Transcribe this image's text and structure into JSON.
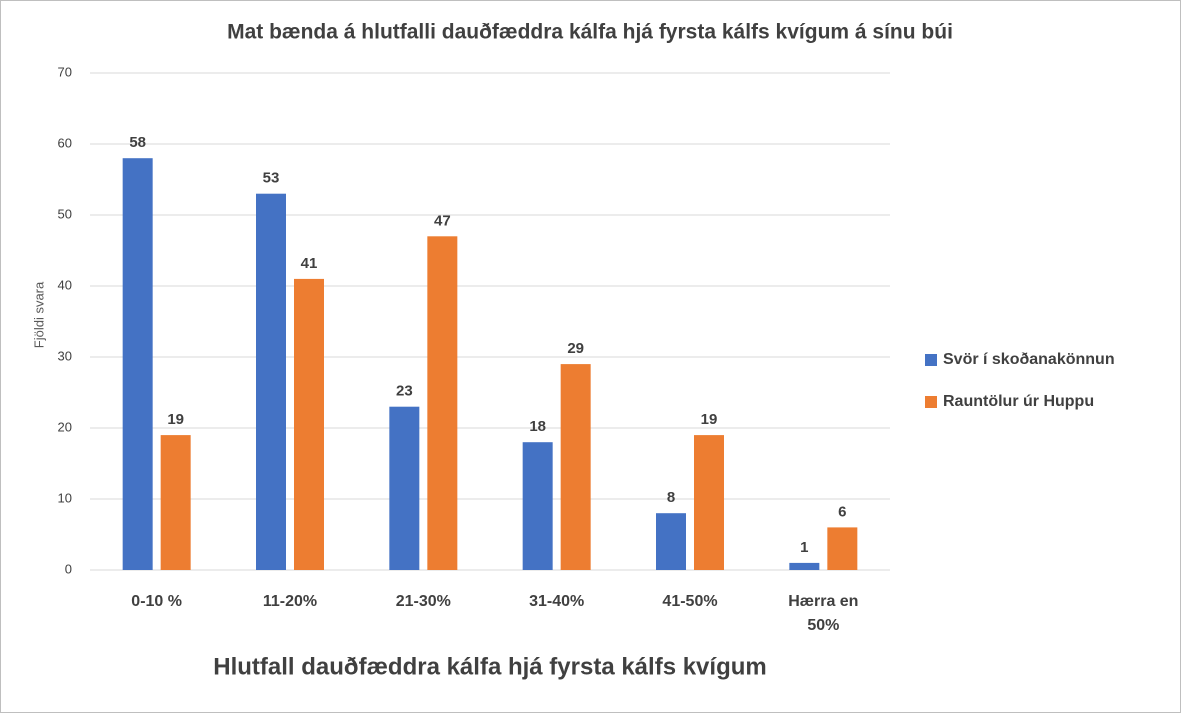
{
  "chart_data": {
    "type": "bar",
    "title": "Mat bænda á hlutfalli dauðfæddra kálfa hjá fyrsta kálfs kvígum á sínu búi",
    "x_label": "Hlutfall dauðfæddra kálfa hjá fyrsta kálfs kvígum",
    "y_label": "Fjöldi svara",
    "categories": [
      "0-10 %",
      "11-20%",
      "21-30%",
      "31-40%",
      "41-50%",
      "Hærra en 50%"
    ],
    "series": [
      {
        "name": "Svör í skoðanakönnun",
        "color": "#4472c4",
        "values": [
          58,
          53,
          23,
          18,
          8,
          1
        ]
      },
      {
        "name": "Rauntölur úr Huppu",
        "color": "#ed7d31",
        "values": [
          19,
          41,
          47,
          29,
          19,
          6
        ]
      }
    ],
    "ylim": [
      0,
      70
    ],
    "yticks": [
      0,
      10,
      20,
      30,
      40,
      50,
      60,
      70
    ],
    "grid": true,
    "legend": "right"
  }
}
